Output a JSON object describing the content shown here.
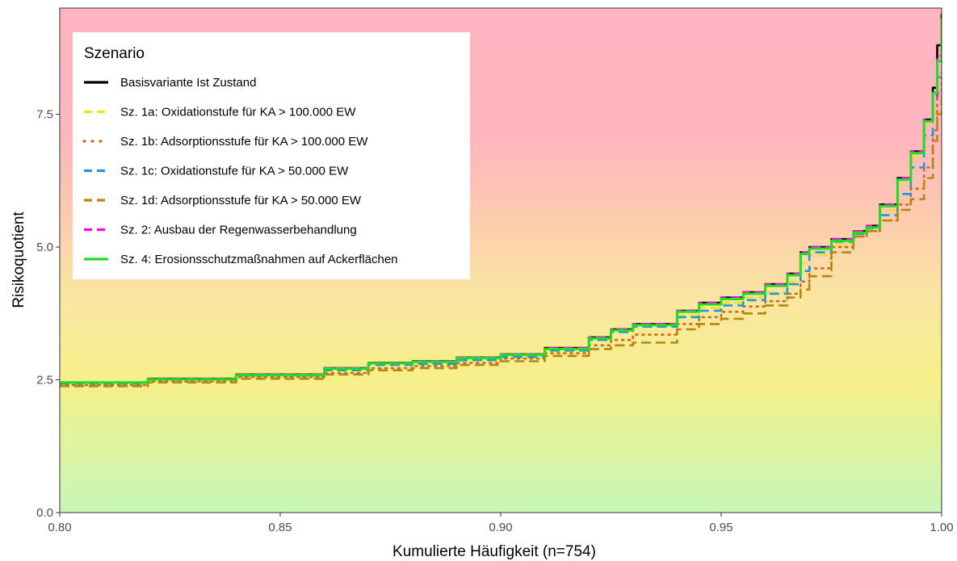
{
  "chart_data": {
    "type": "line",
    "xlabel": "Kumulierte Häufigkeit (n=754)",
    "ylabel": "Risikoquotient",
    "xlim": [
      0.8,
      1.0
    ],
    "ylim": [
      0.0,
      9.5
    ],
    "x_ticks": [
      "0.80",
      "0.85",
      "0.90",
      "0.95",
      "1.00"
    ],
    "y_ticks": [
      "0.0",
      "2.5",
      "5.0",
      "7.5"
    ],
    "grid": false,
    "background": "vertical gradient: green at 0 through yellow around 2.5 to red above 5",
    "legend": {
      "title": "Szenario",
      "position": "top-left"
    },
    "series": [
      {
        "name": "Basisvariante Ist Zustand",
        "color": "#000000",
        "dash": "solid",
        "points": [
          [
            0.8,
            2.45
          ],
          [
            0.82,
            2.52
          ],
          [
            0.84,
            2.6
          ],
          [
            0.86,
            2.72
          ],
          [
            0.87,
            2.82
          ],
          [
            0.88,
            2.85
          ],
          [
            0.89,
            2.92
          ],
          [
            0.9,
            2.98
          ],
          [
            0.91,
            3.1
          ],
          [
            0.92,
            3.3
          ],
          [
            0.925,
            3.45
          ],
          [
            0.93,
            3.55
          ],
          [
            0.94,
            3.8
          ],
          [
            0.945,
            3.95
          ],
          [
            0.95,
            4.05
          ],
          [
            0.955,
            4.15
          ],
          [
            0.96,
            4.3
          ],
          [
            0.965,
            4.5
          ],
          [
            0.968,
            4.9
          ],
          [
            0.97,
            5.0
          ],
          [
            0.975,
            5.15
          ],
          [
            0.98,
            5.3
          ],
          [
            0.983,
            5.4
          ],
          [
            0.986,
            5.8
          ],
          [
            0.99,
            6.3
          ],
          [
            0.993,
            6.8
          ],
          [
            0.996,
            7.4
          ],
          [
            0.998,
            8.0
          ],
          [
            0.999,
            8.8
          ],
          [
            1.0,
            9.4
          ]
        ]
      },
      {
        "name": "Sz. 1a: Oxidationstufe  für KA > 100.000 EW",
        "color": "#f0e020",
        "dash": "longdash",
        "points": [
          [
            0.8,
            2.42
          ],
          [
            0.82,
            2.5
          ],
          [
            0.84,
            2.58
          ],
          [
            0.86,
            2.68
          ],
          [
            0.87,
            2.78
          ],
          [
            0.88,
            2.82
          ],
          [
            0.89,
            2.88
          ],
          [
            0.9,
            2.95
          ],
          [
            0.91,
            3.05
          ],
          [
            0.92,
            3.25
          ],
          [
            0.925,
            3.4
          ],
          [
            0.93,
            3.5
          ],
          [
            0.94,
            3.7
          ],
          [
            0.945,
            3.85
          ],
          [
            0.95,
            3.95
          ],
          [
            0.955,
            4.05
          ],
          [
            0.96,
            4.15
          ],
          [
            0.965,
            4.35
          ],
          [
            0.968,
            4.7
          ],
          [
            0.97,
            4.85
          ],
          [
            0.975,
            5.05
          ],
          [
            0.98,
            5.25
          ],
          [
            0.983,
            5.35
          ],
          [
            0.986,
            5.7
          ],
          [
            0.99,
            6.2
          ],
          [
            0.993,
            6.7
          ],
          [
            0.996,
            7.3
          ],
          [
            0.998,
            7.9
          ],
          [
            0.999,
            8.5
          ],
          [
            1.0,
            9.3
          ]
        ]
      },
      {
        "name": "Sz. 1b: Adsorptionsstufe  für KA > 100.000 EW",
        "color": "#d2691e",
        "dash": "dotted",
        "points": [
          [
            0.8,
            2.4
          ],
          [
            0.82,
            2.47
          ],
          [
            0.84,
            2.55
          ],
          [
            0.86,
            2.63
          ],
          [
            0.87,
            2.72
          ],
          [
            0.88,
            2.76
          ],
          [
            0.89,
            2.82
          ],
          [
            0.9,
            2.9
          ],
          [
            0.91,
            3.0
          ],
          [
            0.92,
            3.15
          ],
          [
            0.925,
            3.25
          ],
          [
            0.93,
            3.35
          ],
          [
            0.94,
            3.55
          ],
          [
            0.945,
            3.68
          ],
          [
            0.95,
            3.78
          ],
          [
            0.955,
            3.88
          ],
          [
            0.96,
            3.98
          ],
          [
            0.965,
            4.12
          ],
          [
            0.968,
            4.35
          ],
          [
            0.97,
            4.6
          ],
          [
            0.975,
            5.0
          ],
          [
            0.98,
            5.2
          ],
          [
            0.983,
            5.3
          ],
          [
            0.986,
            5.5
          ],
          [
            0.99,
            5.8
          ],
          [
            0.993,
            6.1
          ],
          [
            0.996,
            6.5
          ],
          [
            0.998,
            7.2
          ],
          [
            0.999,
            7.9
          ],
          [
            1.0,
            8.2
          ]
        ]
      },
      {
        "name": "Sz. 1c: Oxidationstufe  für KA > 50.000 EW",
        "color": "#1e9bd7",
        "dash": "longdash",
        "points": [
          [
            0.8,
            2.43
          ],
          [
            0.82,
            2.5
          ],
          [
            0.84,
            2.58
          ],
          [
            0.86,
            2.68
          ],
          [
            0.87,
            2.78
          ],
          [
            0.88,
            2.8
          ],
          [
            0.89,
            2.87
          ],
          [
            0.9,
            2.93
          ],
          [
            0.91,
            3.05
          ],
          [
            0.92,
            3.25
          ],
          [
            0.925,
            3.4
          ],
          [
            0.93,
            3.5
          ],
          [
            0.94,
            3.68
          ],
          [
            0.945,
            3.8
          ],
          [
            0.95,
            3.9
          ],
          [
            0.955,
            4.0
          ],
          [
            0.96,
            4.12
          ],
          [
            0.965,
            4.3
          ],
          [
            0.968,
            4.55
          ],
          [
            0.97,
            4.9
          ],
          [
            0.975,
            5.1
          ],
          [
            0.98,
            5.25
          ],
          [
            0.983,
            5.35
          ],
          [
            0.986,
            5.6
          ],
          [
            0.99,
            6.0
          ],
          [
            0.993,
            6.5
          ],
          [
            0.996,
            7.1
          ],
          [
            0.998,
            7.8
          ],
          [
            0.999,
            8.2
          ],
          [
            1.0,
            8.3
          ]
        ]
      },
      {
        "name": "Sz. 1d: Adsorptionsstufe  für KA > 50.000 EW",
        "color": "#b8860b",
        "dash": "longdash",
        "points": [
          [
            0.8,
            2.38
          ],
          [
            0.82,
            2.45
          ],
          [
            0.84,
            2.52
          ],
          [
            0.86,
            2.6
          ],
          [
            0.87,
            2.68
          ],
          [
            0.88,
            2.72
          ],
          [
            0.89,
            2.78
          ],
          [
            0.9,
            2.85
          ],
          [
            0.91,
            2.95
          ],
          [
            0.92,
            3.08
          ],
          [
            0.925,
            3.15
          ],
          [
            0.93,
            3.2
          ],
          [
            0.94,
            3.45
          ],
          [
            0.945,
            3.55
          ],
          [
            0.95,
            3.65
          ],
          [
            0.955,
            3.75
          ],
          [
            0.96,
            3.9
          ],
          [
            0.965,
            4.05
          ],
          [
            0.968,
            4.2
          ],
          [
            0.97,
            4.45
          ],
          [
            0.975,
            4.9
          ],
          [
            0.98,
            5.2
          ],
          [
            0.983,
            5.3
          ],
          [
            0.986,
            5.5
          ],
          [
            0.99,
            5.7
          ],
          [
            0.993,
            5.9
          ],
          [
            0.996,
            6.3
          ],
          [
            0.998,
            7.0
          ],
          [
            0.999,
            7.5
          ],
          [
            1.0,
            7.9
          ]
        ]
      },
      {
        "name": "Sz. 2: Ausbau der Regenwasserbehandlung",
        "color": "#ff00ff",
        "dash": "longdash",
        "points": [
          [
            0.8,
            2.45
          ],
          [
            0.82,
            2.52
          ],
          [
            0.84,
            2.6
          ],
          [
            0.86,
            2.72
          ],
          [
            0.87,
            2.82
          ],
          [
            0.88,
            2.85
          ],
          [
            0.89,
            2.92
          ],
          [
            0.9,
            2.98
          ],
          [
            0.91,
            3.1
          ],
          [
            0.92,
            3.3
          ],
          [
            0.925,
            3.45
          ],
          [
            0.93,
            3.55
          ],
          [
            0.94,
            3.8
          ],
          [
            0.945,
            3.95
          ],
          [
            0.95,
            4.05
          ],
          [
            0.955,
            4.15
          ],
          [
            0.96,
            4.3
          ],
          [
            0.965,
            4.5
          ],
          [
            0.968,
            4.9
          ],
          [
            0.97,
            5.0
          ],
          [
            0.975,
            5.15
          ],
          [
            0.98,
            5.3
          ],
          [
            0.983,
            5.4
          ],
          [
            0.986,
            5.8
          ],
          [
            0.99,
            6.3
          ],
          [
            0.993,
            6.8
          ],
          [
            0.996,
            7.4
          ],
          [
            0.998,
            7.8
          ],
          [
            0.999,
            8.6
          ],
          [
            1.0,
            9.4
          ]
        ]
      },
      {
        "name": "Sz. 4: Erosionsschutzmaßnahmen auf Ackerflächen",
        "color": "#22dd22",
        "dash": "solid",
        "points": [
          [
            0.8,
            2.45
          ],
          [
            0.82,
            2.51
          ],
          [
            0.84,
            2.59
          ],
          [
            0.86,
            2.71
          ],
          [
            0.87,
            2.81
          ],
          [
            0.88,
            2.84
          ],
          [
            0.89,
            2.91
          ],
          [
            0.9,
            2.97
          ],
          [
            0.91,
            3.08
          ],
          [
            0.92,
            3.28
          ],
          [
            0.925,
            3.43
          ],
          [
            0.93,
            3.53
          ],
          [
            0.94,
            3.78
          ],
          [
            0.945,
            3.92
          ],
          [
            0.95,
            4.02
          ],
          [
            0.955,
            4.12
          ],
          [
            0.96,
            4.27
          ],
          [
            0.965,
            4.47
          ],
          [
            0.968,
            4.87
          ],
          [
            0.97,
            4.97
          ],
          [
            0.975,
            5.12
          ],
          [
            0.98,
            5.27
          ],
          [
            0.983,
            5.37
          ],
          [
            0.986,
            5.77
          ],
          [
            0.99,
            6.27
          ],
          [
            0.993,
            6.77
          ],
          [
            0.996,
            7.37
          ],
          [
            0.998,
            7.9
          ],
          [
            0.999,
            8.5
          ],
          [
            1.0,
            9.3
          ]
        ]
      }
    ]
  }
}
